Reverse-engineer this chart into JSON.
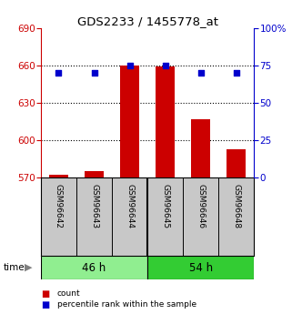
{
  "title": "GDS2233 / 1455778_at",
  "samples": [
    "GSM96642",
    "GSM96643",
    "GSM96644",
    "GSM96645",
    "GSM96646",
    "GSM96648"
  ],
  "count_values": [
    572,
    575,
    660,
    659,
    617,
    593
  ],
  "percentile_values": [
    70,
    70,
    75,
    75,
    70,
    70
  ],
  "groups": [
    {
      "label": "46 h",
      "color": "#90EE90"
    },
    {
      "label": "54 h",
      "color": "#33CC33"
    }
  ],
  "group_split": 3,
  "ylim_left": [
    570,
    690
  ],
  "ylim_right": [
    0,
    100
  ],
  "yticks_left": [
    570,
    600,
    630,
    660,
    690
  ],
  "yticks_right": [
    0,
    25,
    50,
    75,
    100
  ],
  "ytick_labels_right": [
    "0",
    "25",
    "50",
    "75",
    "100%"
  ],
  "grid_values": [
    600,
    630,
    660
  ],
  "bar_color": "#CC0000",
  "dot_color": "#0000CC",
  "bar_width": 0.55,
  "plot_bg_color": "#ffffff",
  "left_axis_color": "#CC0000",
  "right_axis_color": "#0000CC",
  "label_panel_color": "#C8C8C8",
  "legend_count_label": "count",
  "legend_pct_label": "percentile rank within the sample",
  "time_label": "time"
}
